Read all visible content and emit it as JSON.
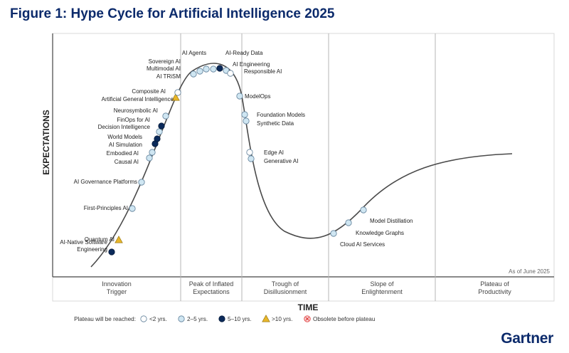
{
  "figure_title": "Figure 1: Hype Cycle for Artificial Intelligence 2025",
  "brand": "Gartner",
  "as_of": "As of June 2025",
  "colors": {
    "curve": "#4a4a4a",
    "lt2": "#ffffff",
    "2to5": "#cfe6f2",
    "5to10": "#0b2a5a",
    "gt10": "#e8b62a",
    "obsolete": "#e03a3a",
    "title": "#0b2a6b"
  },
  "chart_data": {
    "type": "hype-cycle",
    "title": "Figure 1: Hype Cycle for Artificial Intelligence 2025",
    "ylabel": "EXPECTATIONS",
    "xlabel": "TIME",
    "phases": [
      [
        "Innovation",
        "Trigger"
      ],
      [
        "Peak of Inflated",
        "Expectations"
      ],
      [
        "Trough of",
        "Disillusionment"
      ],
      [
        "Slope of",
        "Enlightenment"
      ],
      [
        "Plateau of",
        "Productivity"
      ]
    ],
    "legend": {
      "title": "Plateau will be reached:",
      "items": [
        {
          "key": "lt2",
          "label": "<2 yrs."
        },
        {
          "key": "2to5",
          "label": "2–5 yrs."
        },
        {
          "key": "5to10",
          "label": "5–10 yrs."
        },
        {
          "key": "gt10",
          "label": ">10 yrs."
        },
        {
          "key": "obsolete",
          "label": "Obsolete before plateau"
        }
      ]
    },
    "technologies": [
      {
        "name": "AI-Native Software Engineering",
        "lines": [
          "AI-Native Software",
          "Engineering"
        ],
        "phase": "Innovation Trigger",
        "plateau": "5to10"
      },
      {
        "name": "Quantum AI",
        "lines": [
          "Quantum AI"
        ],
        "phase": "Innovation Trigger",
        "plateau": "gt10"
      },
      {
        "name": "First-Principles AI",
        "lines": [
          "First-Principles AI"
        ],
        "phase": "Innovation Trigger",
        "plateau": "2to5"
      },
      {
        "name": "AI Governance Platforms",
        "lines": [
          "AI Governance Platforms"
        ],
        "phase": "Innovation Trigger",
        "plateau": "2to5"
      },
      {
        "name": "Causal AI",
        "lines": [
          "Causal AI"
        ],
        "phase": "Innovation Trigger",
        "plateau": "2to5"
      },
      {
        "name": "Embodied AI",
        "lines": [
          "Embodied AI"
        ],
        "phase": "Innovation Trigger",
        "plateau": "2to5"
      },
      {
        "name": "AI Simulation",
        "lines": [
          "AI Simulation"
        ],
        "phase": "Innovation Trigger",
        "plateau": "5to10"
      },
      {
        "name": "World Models",
        "lines": [
          "World Models"
        ],
        "phase": "Innovation Trigger",
        "plateau": "5to10"
      },
      {
        "name": "Decision Intelligence",
        "lines": [
          "Decision Intelligence"
        ],
        "phase": "Innovation Trigger",
        "plateau": "2to5"
      },
      {
        "name": "FinOps for AI",
        "lines": [
          "FinOps for AI"
        ],
        "phase": "Innovation Trigger",
        "plateau": "5to10"
      },
      {
        "name": "Neurosymbolic AI",
        "lines": [
          "Neurosymbolic AI"
        ],
        "phase": "Innovation Trigger",
        "plateau": "2to5"
      },
      {
        "name": "Artificial General Intelligence",
        "lines": [
          "Artificial General Intelligence"
        ],
        "phase": "Innovation Trigger",
        "plateau": "gt10"
      },
      {
        "name": "Composite AI",
        "lines": [
          "Composite AI"
        ],
        "phase": "Innovation Trigger",
        "plateau": "lt2"
      },
      {
        "name": "AI TRiSM",
        "lines": [
          "AI TRiSM"
        ],
        "phase": "Peak of Inflated Expectations",
        "plateau": "2to5"
      },
      {
        "name": "Multimodal AI",
        "lines": [
          "Multimodal AI"
        ],
        "phase": "Peak of Inflated Expectations",
        "plateau": "2to5"
      },
      {
        "name": "Sovereign AI",
        "lines": [
          "Sovereign AI"
        ],
        "phase": "Peak of Inflated Expectations",
        "plateau": "2to5"
      },
      {
        "name": "AI Agents",
        "lines": [
          "AI Agents"
        ],
        "phase": "Peak of Inflated Expectations",
        "plateau": "2to5"
      },
      {
        "name": "AI-Ready Data",
        "lines": [
          "AI-Ready Data"
        ],
        "phase": "Peak of Inflated Expectations",
        "plateau": "5to10"
      },
      {
        "name": "AI Engineering",
        "lines": [
          "AI Engineering"
        ],
        "phase": "Peak of Inflated Expectations",
        "plateau": "2to5"
      },
      {
        "name": "Responsible AI",
        "lines": [
          "Responsible AI"
        ],
        "phase": "Peak of Inflated Expectations",
        "plateau": "lt2"
      },
      {
        "name": "ModelOps",
        "lines": [
          "ModelOps"
        ],
        "phase": "Trough of Disillusionment",
        "plateau": "2to5"
      },
      {
        "name": "Foundation Models",
        "lines": [
          "Foundation Models"
        ],
        "phase": "Trough of Disillusionment",
        "plateau": "2to5"
      },
      {
        "name": "Synthetic Data",
        "lines": [
          "Synthetic Data"
        ],
        "phase": "Trough of Disillusionment",
        "plateau": "2to5"
      },
      {
        "name": "Edge AI",
        "lines": [
          "Edge AI"
        ],
        "phase": "Trough of Disillusionment",
        "plateau": "lt2"
      },
      {
        "name": "Generative AI",
        "lines": [
          "Generative AI"
        ],
        "phase": "Trough of Disillusionment",
        "plateau": "2to5"
      },
      {
        "name": "Cloud AI Services",
        "lines": [
          "Cloud AI Services"
        ],
        "phase": "Slope of Enlightenment",
        "plateau": "2to5"
      },
      {
        "name": "Knowledge Graphs",
        "lines": [
          "Knowledge Graphs"
        ],
        "phase": "Slope of Enlightenment",
        "plateau": "2to5"
      },
      {
        "name": "Model Distillation",
        "lines": [
          "Model Distillation"
        ],
        "phase": "Slope of Enlightenment",
        "plateau": "2to5"
      }
    ]
  }
}
